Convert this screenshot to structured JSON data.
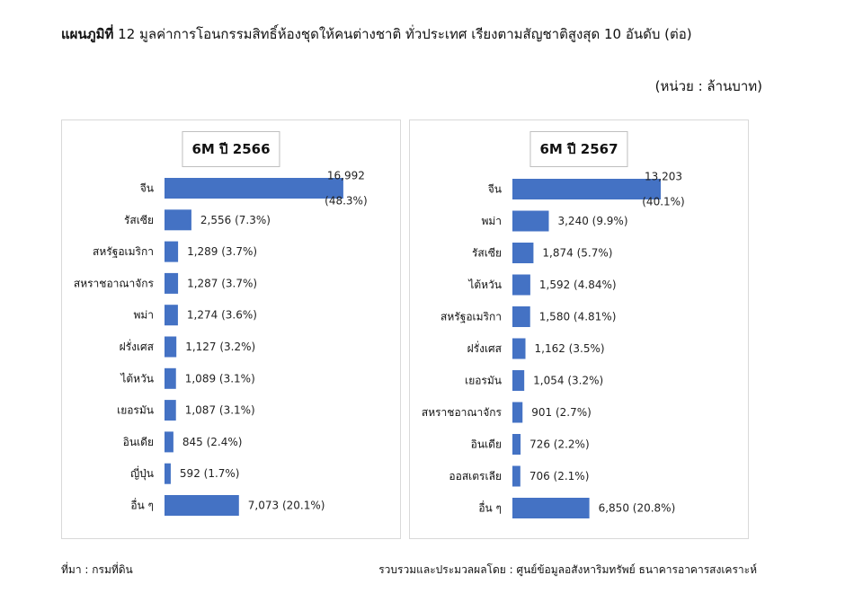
{
  "header": {
    "title_bold": "แผนภูมิที่",
    "title_rest": "12 มูลค่าการโอนกรรมสิทธิ์ห้องชุดให้คนต่างชาติ ทั่วประเทศ  เรียงตามสัญชาติสูงสุด 10 อันดับ (ต่อ)",
    "unit": "(หน่วย : ล้านบาท)"
  },
  "footer": {
    "source": "ที่มา : กรมที่ดิน",
    "compiled_by": "รวบรวมและประมวลผลโดย : ศูนย์ข้อมูลอสังหาริมทรัพย์ ธนาคารอาคารสงเคราะห์"
  },
  "colors": {
    "bar": "#4472c4",
    "panel_border": "#d9d9d9"
  },
  "chart_data": [
    {
      "type": "bar",
      "orientation": "horizontal",
      "title": "6M ปี 2566",
      "categories": [
        "จีน",
        "รัสเซีย",
        "สหรัฐอเมริกา",
        "สหราชอาณาจักร",
        "พม่า",
        "ฝรั่งเศส",
        "ไต้หวัน",
        "เยอรมัน",
        "อินเดีย",
        "ญี่ปุ่น",
        "อื่น ๆ"
      ],
      "values": [
        16992,
        2556,
        1289,
        1287,
        1274,
        1127,
        1089,
        1087,
        845,
        592,
        7073
      ],
      "labels": [
        "16,992",
        "2,556 (7.3%)",
        "1,289 (3.7%)",
        "1,287 (3.7%)",
        "1,274 (3.6%)",
        "1,127 (3.2%)",
        "1,089 (3.1%)",
        "1,087 (3.1%)",
        "845 (2.4%)",
        "592 (1.7%)",
        "7,073 (20.1%)"
      ],
      "label_extra": [
        "(48.3%)",
        "",
        "",
        "",
        "",
        "",
        "",
        "",
        "",
        "",
        ""
      ],
      "xlim": [
        0,
        17000
      ],
      "grid": false,
      "legend": "none"
    },
    {
      "type": "bar",
      "orientation": "horizontal",
      "title": "6M ปี 2567",
      "categories": [
        "จีน",
        "พม่า",
        "รัสเซีย",
        "ไต้หวัน",
        "สหรัฐอเมริกา",
        "ฝรั่งเศส",
        "เยอรมัน",
        "สหราชอาณาจักร",
        "อินเดีย",
        "ออสเตรเลีย",
        "อื่น ๆ"
      ],
      "values": [
        13203,
        3240,
        1874,
        1592,
        1580,
        1162,
        1054,
        901,
        726,
        706,
        6850
      ],
      "labels": [
        "13,203",
        "3,240 (9.9%)",
        "1,874 (5.7%)",
        "1,592 (4.84%)",
        "1,580 (4.81%)",
        "1,162 (3.5%)",
        "1,054 (3.2%)",
        "901 (2.7%)",
        "726 (2.2%)",
        "706 (2.1%)",
        "6,850 (20.8%)"
      ],
      "label_extra": [
        "(40.1%)",
        "",
        "",
        "",
        "",
        "",
        "",
        "",
        "",
        "",
        ""
      ],
      "xlim": [
        0,
        13203
      ],
      "grid": false,
      "legend": "none"
    }
  ]
}
